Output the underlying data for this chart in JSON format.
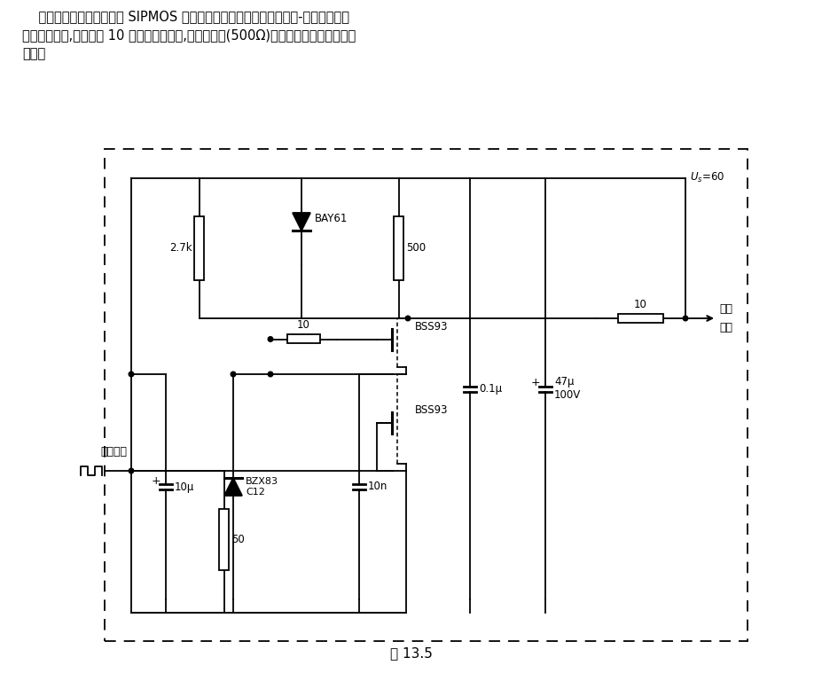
{
  "desc1": "    电路采用串级连接的两个 SIPMOS 晶体管工作。利用这种电路可使栅-漏极间的密勒",
  "desc2": "电容不起作用,故可有约 10 倍高的工作频率,接入低电阻(500Ω)可免去采用频率特性补偿",
  "desc3": "电路。",
  "caption": "图 13.5",
  "vcc_label": "$U_s$=60",
  "out_label1": "视频",
  "out_label2": "输出",
  "inp_label": "视频输入",
  "bss93_label": "BSS93",
  "bay61_label": "BAY61",
  "bzx83_label1": "BZX83",
  "bzx83_label2": "C12"
}
